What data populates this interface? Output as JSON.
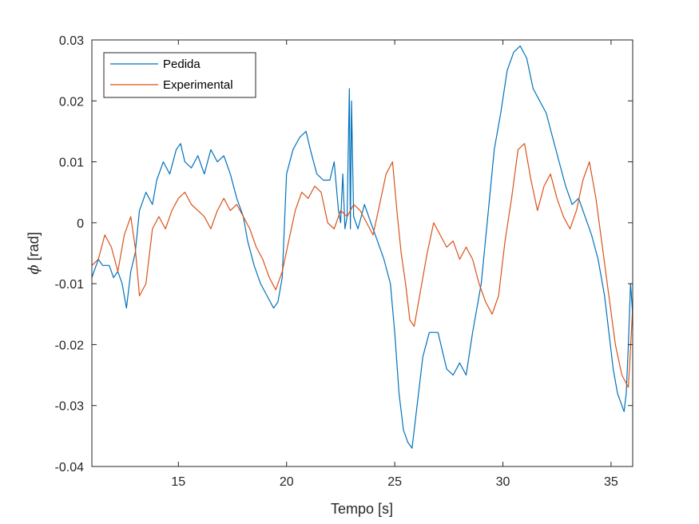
{
  "chart_data": {
    "type": "line",
    "title": "",
    "xlabel": "Tempo [s]",
    "ylabel_symbol": "ϕ",
    "ylabel_unit": " [rad]",
    "xlim": [
      11,
      36
    ],
    "ylim": [
      -0.04,
      0.03
    ],
    "xticks": [
      15,
      20,
      25,
      30,
      35
    ],
    "yticks": [
      -0.04,
      -0.03,
      -0.02,
      -0.01,
      0,
      0.01,
      0.02,
      0.03
    ],
    "ytick_labels": [
      "-0.04",
      "-0.03",
      "-0.02",
      "-0.01",
      "0",
      "0.01",
      "0.02",
      "0.03"
    ],
    "grid": false,
    "legend_position": "top-left",
    "series": [
      {
        "name": "Pedida",
        "color": "#0072BD",
        "x": [
          11.0,
          11.3,
          11.5,
          11.8,
          12.0,
          12.2,
          12.4,
          12.6,
          12.8,
          13.0,
          13.2,
          13.5,
          13.8,
          14.0,
          14.3,
          14.6,
          14.9,
          15.1,
          15.3,
          15.6,
          15.9,
          16.2,
          16.5,
          16.8,
          17.1,
          17.4,
          17.7,
          18.0,
          18.2,
          18.5,
          18.8,
          19.1,
          19.4,
          19.6,
          19.8,
          20.0,
          20.3,
          20.6,
          20.9,
          21.1,
          21.4,
          21.7,
          22.0,
          22.2,
          22.4,
          22.5,
          22.6,
          22.7,
          22.8,
          22.9,
          22.95,
          23.0,
          23.1,
          23.3,
          23.6,
          23.9,
          24.2,
          24.5,
          24.8,
          25.0,
          25.2,
          25.4,
          25.6,
          25.8,
          26.0,
          26.3,
          26.6,
          27.0,
          27.4,
          27.7,
          28.0,
          28.3,
          28.6,
          29.0,
          29.3,
          29.6,
          29.9,
          30.2,
          30.5,
          30.8,
          31.1,
          31.4,
          31.7,
          32.0,
          32.3,
          32.6,
          32.9,
          33.2,
          33.5,
          33.8,
          34.1,
          34.4,
          34.7,
          34.9,
          35.1,
          35.3,
          35.5,
          35.6,
          35.7,
          35.8,
          35.9,
          36.0
        ],
        "values": [
          -0.009,
          -0.006,
          -0.007,
          -0.007,
          -0.009,
          -0.008,
          -0.01,
          -0.014,
          -0.008,
          -0.005,
          0.002,
          0.005,
          0.003,
          0.007,
          0.01,
          0.008,
          0.012,
          0.013,
          0.01,
          0.009,
          0.011,
          0.008,
          0.012,
          0.01,
          0.011,
          0.008,
          0.004,
          0.001,
          -0.003,
          -0.007,
          -0.01,
          -0.012,
          -0.014,
          -0.013,
          -0.009,
          0.008,
          0.012,
          0.014,
          0.015,
          0.012,
          0.008,
          0.007,
          0.007,
          0.01,
          0.002,
          0.0,
          0.008,
          -0.001,
          0.001,
          0.022,
          -0.001,
          0.02,
          0.001,
          -0.001,
          0.003,
          0.0,
          -0.003,
          -0.006,
          -0.01,
          -0.018,
          -0.028,
          -0.034,
          -0.036,
          -0.037,
          -0.031,
          -0.022,
          -0.018,
          -0.018,
          -0.024,
          -0.025,
          -0.023,
          -0.025,
          -0.018,
          -0.01,
          0.001,
          0.012,
          0.018,
          0.025,
          0.028,
          0.029,
          0.027,
          0.022,
          0.02,
          0.018,
          0.014,
          0.01,
          0.006,
          0.003,
          0.004,
          0.001,
          -0.002,
          -0.006,
          -0.012,
          -0.018,
          -0.024,
          -0.028,
          -0.03,
          -0.031,
          -0.028,
          -0.02,
          -0.01,
          -0.015
        ]
      },
      {
        "name": "Experimental",
        "color": "#D95319",
        "x": [
          11.0,
          11.3,
          11.6,
          11.9,
          12.2,
          12.5,
          12.8,
          13.0,
          13.2,
          13.5,
          13.8,
          14.1,
          14.4,
          14.7,
          15.0,
          15.3,
          15.6,
          15.9,
          16.2,
          16.5,
          16.8,
          17.1,
          17.4,
          17.7,
          18.0,
          18.3,
          18.6,
          18.9,
          19.2,
          19.5,
          19.8,
          20.1,
          20.4,
          20.7,
          21.0,
          21.3,
          21.6,
          21.9,
          22.2,
          22.5,
          22.8,
          23.1,
          23.4,
          23.7,
          24.0,
          24.3,
          24.6,
          24.9,
          25.1,
          25.3,
          25.5,
          25.7,
          25.9,
          26.2,
          26.5,
          26.8,
          27.1,
          27.4,
          27.7,
          28.0,
          28.3,
          28.6,
          28.9,
          29.2,
          29.5,
          29.8,
          30.1,
          30.4,
          30.7,
          31.0,
          31.3,
          31.6,
          31.9,
          32.2,
          32.5,
          32.8,
          33.1,
          33.4,
          33.7,
          34.0,
          34.3,
          34.6,
          34.9,
          35.2,
          35.5,
          35.8,
          36.0
        ],
        "values": [
          -0.007,
          -0.006,
          -0.002,
          -0.004,
          -0.008,
          -0.002,
          0.001,
          -0.004,
          -0.012,
          -0.01,
          -0.001,
          0.001,
          -0.001,
          0.002,
          0.004,
          0.005,
          0.003,
          0.002,
          0.001,
          -0.001,
          0.002,
          0.004,
          0.002,
          0.003,
          0.001,
          -0.001,
          -0.004,
          -0.006,
          -0.009,
          -0.011,
          -0.008,
          -0.003,
          0.002,
          0.005,
          0.004,
          0.006,
          0.005,
          0.0,
          -0.001,
          0.002,
          0.001,
          0.003,
          0.002,
          0.0,
          -0.002,
          0.003,
          0.008,
          0.01,
          0.002,
          -0.005,
          -0.01,
          -0.016,
          -0.017,
          -0.011,
          -0.005,
          0.0,
          -0.002,
          -0.004,
          -0.003,
          -0.006,
          -0.004,
          -0.006,
          -0.01,
          -0.013,
          -0.015,
          -0.012,
          -0.003,
          0.004,
          0.012,
          0.013,
          0.007,
          0.002,
          0.006,
          0.008,
          0.004,
          0.001,
          -0.001,
          0.002,
          0.007,
          0.01,
          0.004,
          -0.004,
          -0.012,
          -0.02,
          -0.025,
          -0.027,
          -0.014
        ]
      }
    ]
  }
}
